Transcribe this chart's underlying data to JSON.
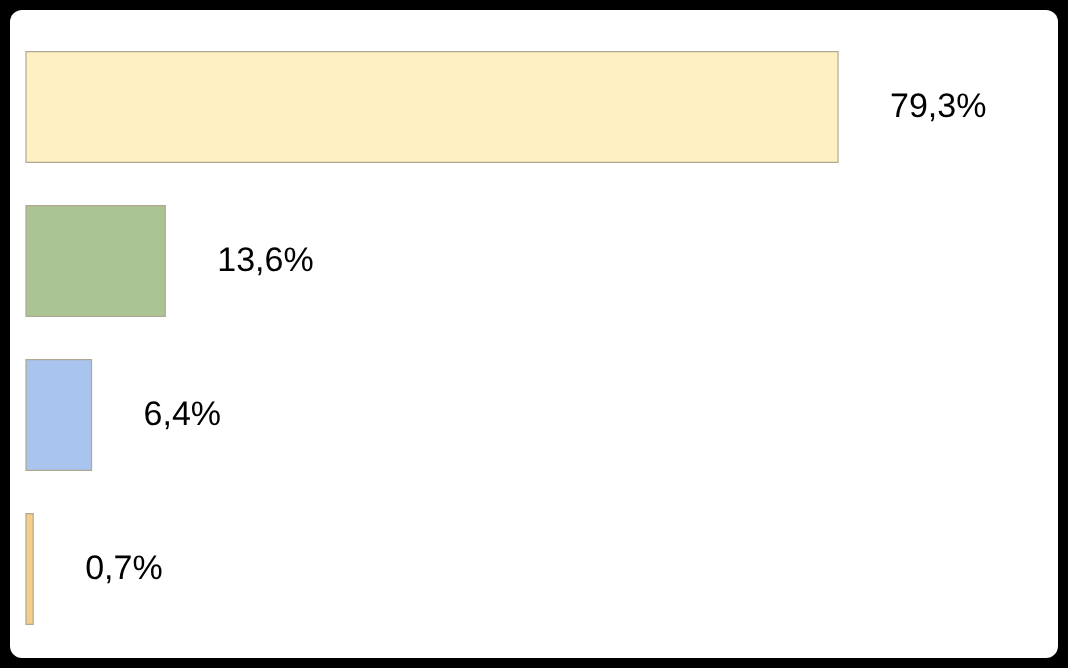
{
  "chart_data": {
    "type": "bar",
    "orientation": "horizontal",
    "categories": [
      null,
      null,
      null,
      null
    ],
    "values": [
      79.3,
      13.6,
      6.4,
      0.7
    ],
    "colors": [
      "#fff0c4",
      "#abc493",
      "#a9c4ee",
      "#f5cf8a"
    ],
    "value_labels": [
      "79,3%",
      "13,6%",
      "6,4%",
      "0,7%"
    ],
    "xlim": [
      0,
      100
    ]
  }
}
